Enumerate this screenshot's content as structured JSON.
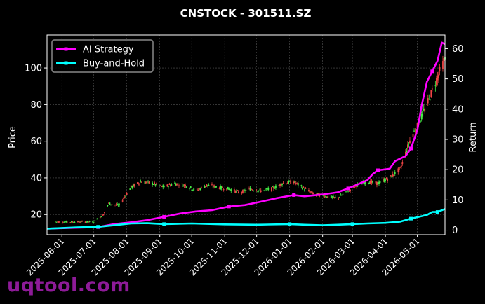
{
  "chart_data": {
    "type": "line",
    "title": "CNSTOCK - 301511.SZ",
    "ylabel_left": "Price",
    "ylabel_right": "Return",
    "ylim_left": [
      9,
      118
    ],
    "ylim_right": [
      -1.5,
      64.5
    ],
    "yticks_left": [
      "20",
      "40",
      "60",
      "80",
      "100"
    ],
    "yticks_right": [
      "0",
      "10",
      "20",
      "30",
      "40",
      "50",
      "60"
    ],
    "xlim": [
      "2025-05-18",
      "2026-05-27"
    ],
    "xticks": [
      "2025-06-01",
      "2025-07-01",
      "2025-08-01",
      "2025-09-01",
      "2025-10-01",
      "2025-11-01",
      "2025-12-01",
      "2026-01-01",
      "2026-02-01",
      "2026-03-01",
      "2026-04-01",
      "2026-05-01"
    ],
    "grid": true,
    "legend_position": "top-left",
    "series": [
      {
        "name": "AI Strategy",
        "color": "#ff00ff",
        "axis": "right",
        "points": [
          [
            "2025-05-18",
            0.5
          ],
          [
            "2025-06-15",
            0.8
          ],
          [
            "2025-07-05",
            1.0
          ],
          [
            "2025-07-20",
            2.0
          ],
          [
            "2025-08-05",
            2.6
          ],
          [
            "2025-08-20",
            3.3
          ],
          [
            "2025-09-05",
            4.4
          ],
          [
            "2025-09-20",
            5.5
          ],
          [
            "2025-10-05",
            6.2
          ],
          [
            "2025-10-20",
            6.6
          ],
          [
            "2025-11-05",
            7.8
          ],
          [
            "2025-11-20",
            8.3
          ],
          [
            "2025-12-05",
            9.4
          ],
          [
            "2025-12-20",
            10.6
          ],
          [
            "2026-01-05",
            11.6
          ],
          [
            "2026-01-15",
            11.2
          ],
          [
            "2026-02-01",
            11.8
          ],
          [
            "2026-02-15",
            12.5
          ],
          [
            "2026-02-25",
            13.8
          ],
          [
            "2026-03-05",
            15.0
          ],
          [
            "2026-03-15",
            16.5
          ],
          [
            "2026-03-20",
            18.5
          ],
          [
            "2026-03-25",
            19.8
          ],
          [
            "2026-04-05",
            20.3
          ],
          [
            "2026-04-10",
            22.8
          ],
          [
            "2026-04-20",
            24.5
          ],
          [
            "2026-04-25",
            27.0
          ],
          [
            "2026-05-01",
            33.0
          ],
          [
            "2026-05-05",
            41.0
          ],
          [
            "2026-05-10",
            49.0
          ],
          [
            "2026-05-15",
            52.5
          ],
          [
            "2026-05-20",
            56.0
          ],
          [
            "2026-05-24",
            62.0
          ],
          [
            "2026-05-27",
            61.5
          ]
        ]
      },
      {
        "name": "Buy-and-Hold",
        "color": "#00ffff",
        "axis": "right",
        "points": [
          [
            "2025-05-18",
            0.5
          ],
          [
            "2025-06-15",
            0.9
          ],
          [
            "2025-07-05",
            1.1
          ],
          [
            "2025-07-20",
            1.6
          ],
          [
            "2025-08-05",
            2.2
          ],
          [
            "2025-08-20",
            2.3
          ],
          [
            "2025-09-05",
            2.0
          ],
          [
            "2025-10-01",
            2.2
          ],
          [
            "2025-11-01",
            1.9
          ],
          [
            "2025-12-01",
            1.8
          ],
          [
            "2026-01-01",
            2.0
          ],
          [
            "2026-01-15",
            1.8
          ],
          [
            "2026-02-01",
            1.6
          ],
          [
            "2026-02-15",
            1.8
          ],
          [
            "2026-03-01",
            2.0
          ],
          [
            "2026-03-15",
            2.2
          ],
          [
            "2026-04-01",
            2.4
          ],
          [
            "2026-04-15",
            2.8
          ],
          [
            "2026-04-25",
            3.8
          ],
          [
            "2026-05-01",
            4.3
          ],
          [
            "2026-05-10",
            5.0
          ],
          [
            "2026-05-15",
            6.0
          ],
          [
            "2026-05-20",
            6.0
          ],
          [
            "2026-05-27",
            7.0
          ]
        ]
      },
      {
        "name": "",
        "kind": "candles",
        "axis": "left",
        "up_color": "#44ee44",
        "down_color": "#ee4444",
        "points": [
          [
            "2025-05-25",
            16
          ],
          [
            "2025-06-15",
            16
          ],
          [
            "2025-07-01",
            16
          ],
          [
            "2025-07-10",
            20
          ],
          [
            "2025-07-15",
            26
          ],
          [
            "2025-07-25",
            25
          ],
          [
            "2025-08-05",
            35
          ],
          [
            "2025-08-15",
            38
          ],
          [
            "2025-08-25",
            37
          ],
          [
            "2025-09-05",
            35
          ],
          [
            "2025-09-15",
            37
          ],
          [
            "2025-09-25",
            36
          ],
          [
            "2025-10-05",
            33
          ],
          [
            "2025-10-15",
            36
          ],
          [
            "2025-10-25",
            35
          ],
          [
            "2025-11-05",
            34
          ],
          [
            "2025-11-15",
            32
          ],
          [
            "2025-11-25",
            34
          ],
          [
            "2025-12-05",
            33
          ],
          [
            "2025-12-15",
            34
          ],
          [
            "2025-12-25",
            37
          ],
          [
            "2026-01-05",
            38
          ],
          [
            "2026-01-15",
            34
          ],
          [
            "2026-01-25",
            31
          ],
          [
            "2026-02-05",
            30
          ],
          [
            "2026-02-15",
            29
          ],
          [
            "2026-02-25",
            33
          ],
          [
            "2026-03-05",
            36
          ],
          [
            "2026-03-15",
            38
          ],
          [
            "2026-03-25",
            37
          ],
          [
            "2026-04-05",
            40
          ],
          [
            "2026-04-15",
            45
          ],
          [
            "2026-04-25",
            62
          ],
          [
            "2026-05-01",
            68
          ],
          [
            "2026-05-10",
            80
          ],
          [
            "2026-05-20",
            95
          ],
          [
            "2026-05-27",
            105
          ]
        ]
      }
    ]
  },
  "legend": [
    {
      "label": "AI Strategy",
      "color": "#ff00ff"
    },
    {
      "label": "Buy-and-Hold",
      "color": "#00ffff"
    }
  ],
  "watermark": "uqtool.com"
}
